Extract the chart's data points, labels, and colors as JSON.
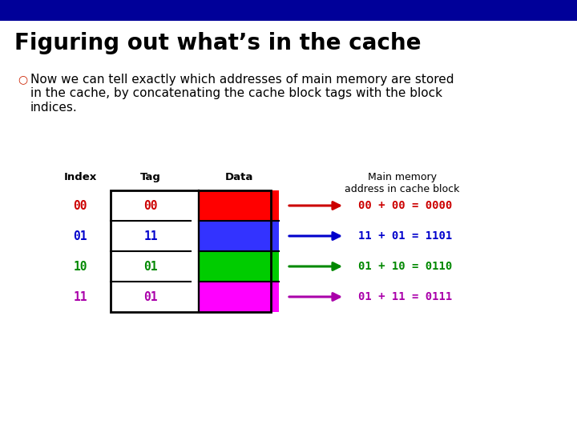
{
  "title": "Figuring out what’s in the cache",
  "title_fontsize": 20,
  "title_fontweight": "bold",
  "body_text": "Now we can tell exactly which addresses of main memory are stored\nin the cache, by concatenating the cache block tags with the block\nindices.",
  "body_fontsize": 11,
  "bullet_char": "○",
  "top_bar_color": "#000099",
  "top_bar_height": 0.048,
  "slide_bg": "#ffffff",
  "rows": [
    {
      "index": "00",
      "tag": "00",
      "data_color": "#ff0000",
      "arrow_color": "#cc0000",
      "label_color": "#cc0000",
      "result": "00 + 00 = 0000"
    },
    {
      "index": "01",
      "tag": "11",
      "data_color": "#3333ff",
      "arrow_color": "#0000cc",
      "label_color": "#0000cc",
      "result": "11 + 01 = 1101"
    },
    {
      "index": "10",
      "tag": "01",
      "data_color": "#00cc00",
      "arrow_color": "#008800",
      "label_color": "#008800",
      "result": "01 + 10 = 0110"
    },
    {
      "index": "11",
      "tag": "01",
      "data_color": "#ff00ff",
      "arrow_color": "#aa00aa",
      "label_color": "#aa00aa",
      "result": "01 + 11 = 0111"
    }
  ],
  "index_colors": [
    "#cc0000",
    "#0000cc",
    "#008800",
    "#aa00aa"
  ],
  "tag_colors": [
    "#cc0000",
    "#0000cc",
    "#008800",
    "#aa00aa"
  ],
  "col_headers": [
    "Index",
    "Tag",
    "Data"
  ],
  "mem_header": "Main memory\naddress in cache block",
  "header_fontsize": 9.5,
  "row_fontsize": 10.5,
  "result_fontsize": 10
}
